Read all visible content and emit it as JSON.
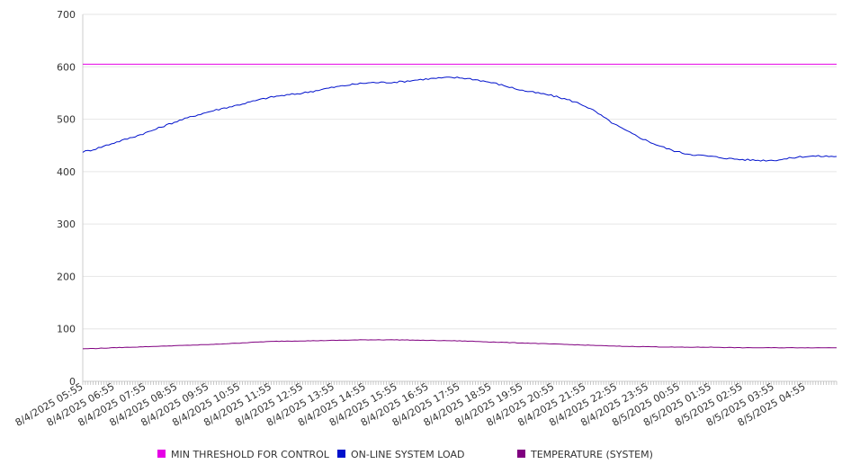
{
  "chart_data": {
    "type": "line",
    "title": "",
    "xlabel": "",
    "ylabel": "",
    "ylim": [
      0,
      700
    ],
    "yticks": [
      0,
      100,
      200,
      300,
      400,
      500,
      600,
      700
    ],
    "grid": true,
    "legend_position": "bottom",
    "categories": [
      "8/4/2025 05:55",
      "8/4/2025 06:55",
      "8/4/2025 07:55",
      "8/4/2025 08:55",
      "8/4/2025 09:55",
      "8/4/2025 10:55",
      "8/4/2025 11:55",
      "8/4/2025 12:55",
      "8/4/2025 13:55",
      "8/4/2025 14:55",
      "8/4/2025 15:55",
      "8/4/2025 16:55",
      "8/4/2025 17:55",
      "8/4/2025 18:55",
      "8/4/2025 19:55",
      "8/4/2025 20:55",
      "8/4/2025 21:55",
      "8/4/2025 22:55",
      "8/4/2025 23:55",
      "8/5/2025 00:55",
      "8/5/2025 01:55",
      "8/5/2025 02:55",
      "8/5/2025 03:55",
      "8/5/2025 04:55"
    ],
    "series": [
      {
        "name": "MIN THRESHOLD FOR CONTROL",
        "color": "#e600e6",
        "values": [
          605,
          605,
          605,
          605,
          605,
          605,
          605,
          605,
          605,
          605,
          605,
          605,
          605,
          605,
          605,
          605,
          605,
          605,
          605,
          605,
          605,
          605,
          605,
          605
        ]
      },
      {
        "name": "ON-LINE SYSTEM LOAD",
        "color": "#0011cc",
        "values": [
          438,
          455,
          474,
          496,
          514,
          528,
          542,
          550,
          561,
          569,
          571,
          577,
          579,
          570,
          555,
          544,
          525,
          488,
          458,
          437,
          429,
          423,
          422,
          429
        ]
      },
      {
        "name": "TEMPERATURE (SYSTEM)",
        "color": "#800080",
        "values": [
          62,
          64,
          66,
          68,
          70,
          73,
          76,
          77,
          78,
          79,
          79,
          78,
          77,
          75,
          73,
          71,
          69,
          67,
          66,
          65,
          65,
          64,
          64,
          64
        ]
      }
    ]
  }
}
